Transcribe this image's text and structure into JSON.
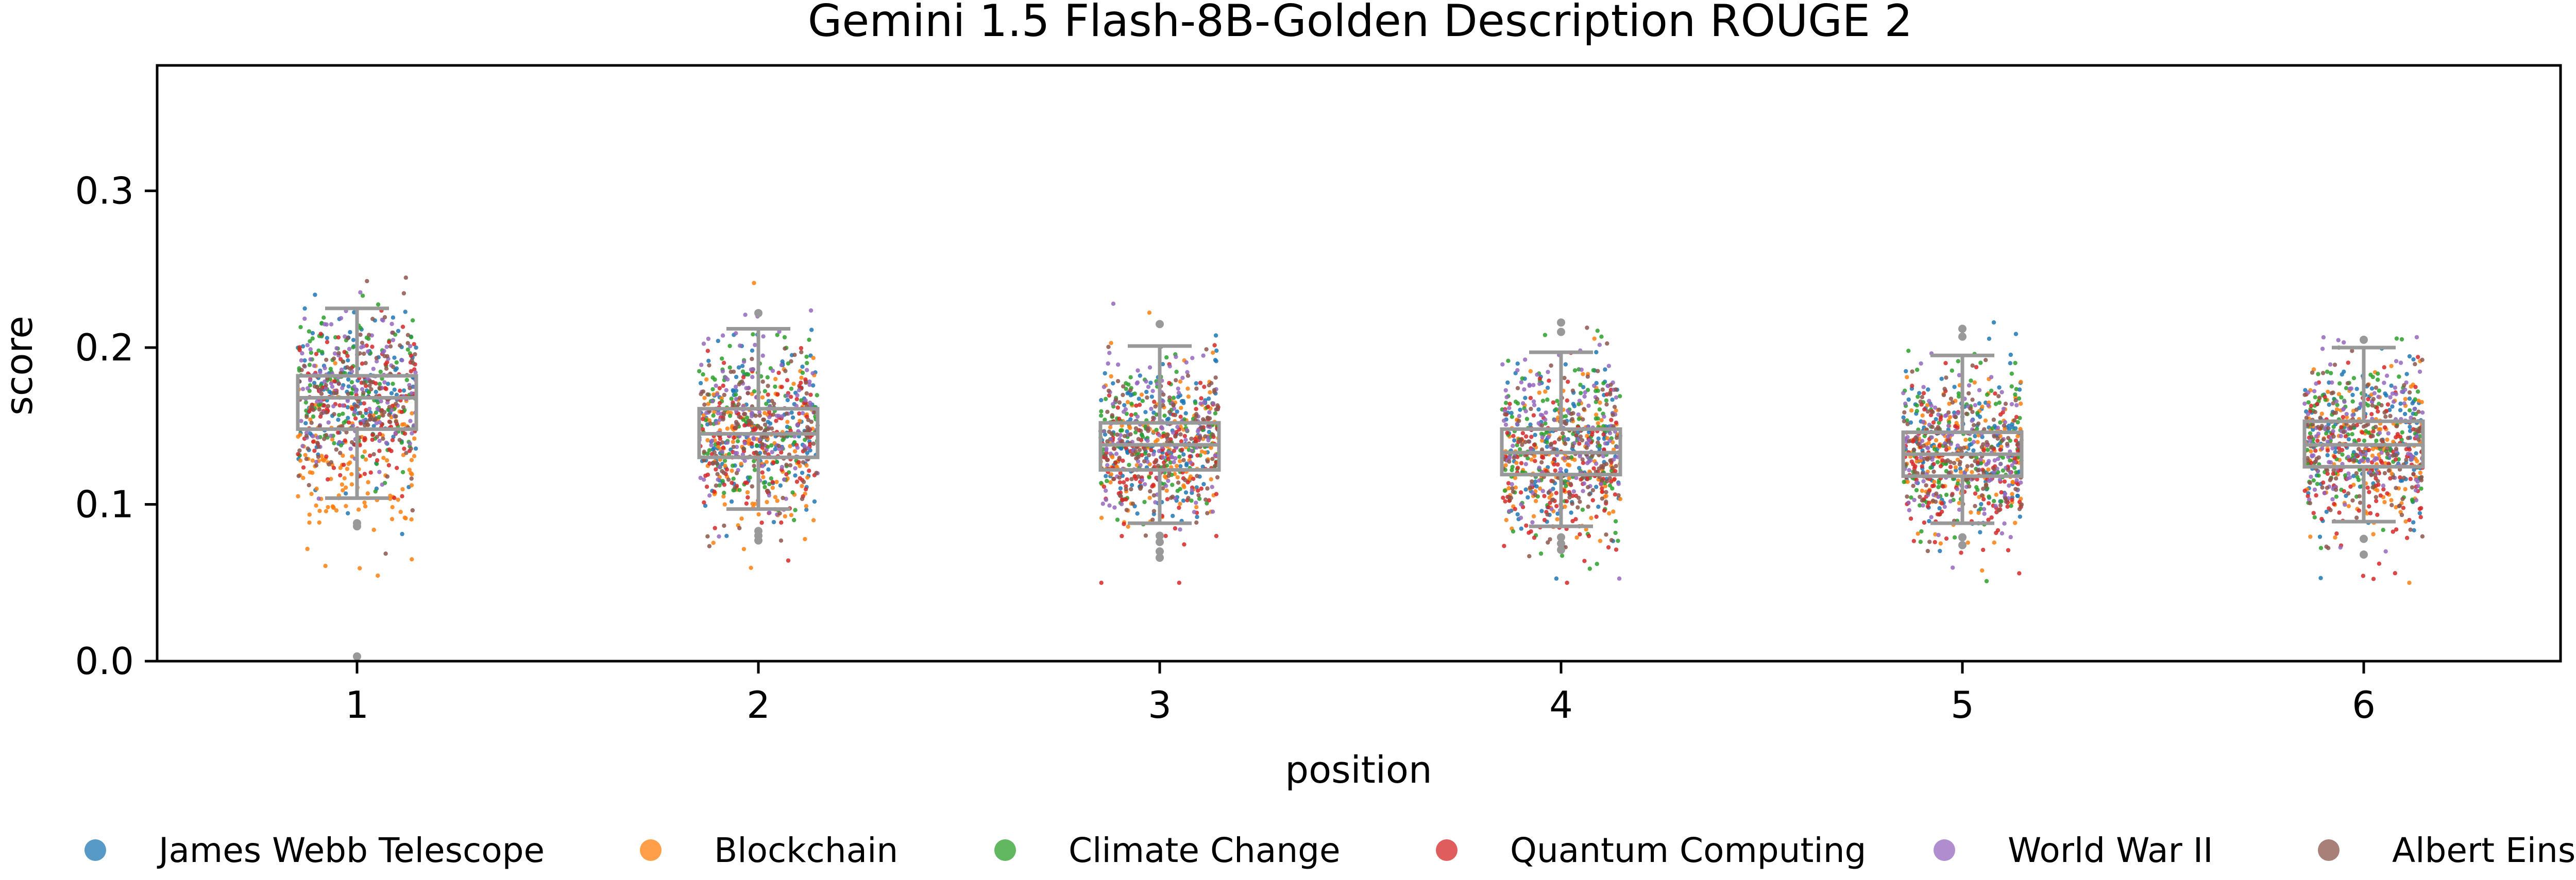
{
  "chart_data": {
    "type": "box-strip",
    "title": "Gemini 1.5 Flash-8B-Golden Description ROUGE 2",
    "xlabel": "position",
    "ylabel": "score",
    "categories": [
      "1",
      "2",
      "3",
      "4",
      "5",
      "6"
    ],
    "y_ticks": [
      "0.0",
      "0.1",
      "0.2",
      "0.3"
    ],
    "ylim": [
      0.0,
      0.38
    ],
    "grid": false,
    "legend_position": "bottom",
    "box_color": "#999999",
    "boxes": [
      {
        "position": "1",
        "whisker_low": 0.104,
        "q1": 0.148,
        "median": 0.168,
        "q3": 0.182,
        "whisker_high": 0.225
      },
      {
        "position": "2",
        "whisker_low": 0.097,
        "q1": 0.13,
        "median": 0.145,
        "q3": 0.161,
        "whisker_high": 0.212
      },
      {
        "position": "3",
        "whisker_low": 0.088,
        "q1": 0.122,
        "median": 0.138,
        "q3": 0.152,
        "whisker_high": 0.201
      },
      {
        "position": "4",
        "whisker_low": 0.086,
        "q1": 0.119,
        "median": 0.133,
        "q3": 0.148,
        "whisker_high": 0.197
      },
      {
        "position": "5",
        "whisker_low": 0.088,
        "q1": 0.118,
        "median": 0.132,
        "q3": 0.146,
        "whisker_high": 0.195
      },
      {
        "position": "6",
        "whisker_low": 0.089,
        "q1": 0.124,
        "median": 0.138,
        "q3": 0.153,
        "whisker_high": 0.2
      }
    ],
    "outliers": [
      {
        "position": "1",
        "values": [
          0.086,
          0.088,
          0.003
        ]
      },
      {
        "position": "2",
        "values": [
          0.083,
          0.08,
          0.077,
          0.222
        ]
      },
      {
        "position": "3",
        "values": [
          0.08,
          0.076,
          0.07,
          0.066,
          0.215
        ]
      },
      {
        "position": "4",
        "values": [
          0.079,
          0.075,
          0.071,
          0.216,
          0.21
        ]
      },
      {
        "position": "5",
        "values": [
          0.079,
          0.074,
          0.212,
          0.207
        ]
      },
      {
        "position": "6",
        "values": [
          0.078,
          0.068,
          0.205
        ]
      }
    ],
    "series": [
      {
        "name": "James Webb Telescope",
        "color": "#1f77b4"
      },
      {
        "name": "Blockchain",
        "color": "#ff7f0e"
      },
      {
        "name": "Climate Change",
        "color": "#2ca02c"
      },
      {
        "name": "Quantum Computing",
        "color": "#d62728"
      },
      {
        "name": "World War II",
        "color": "#9467bd"
      },
      {
        "name": "Albert Einstein",
        "color": "#8c564b"
      }
    ],
    "strip_center_by_series": [
      [
        0.172,
        0.148,
        0.14,
        0.136,
        0.134,
        0.14
      ],
      [
        0.128,
        0.14,
        0.136,
        0.13,
        0.13,
        0.134
      ],
      [
        0.176,
        0.15,
        0.142,
        0.139,
        0.137,
        0.144
      ],
      [
        0.16,
        0.136,
        0.13,
        0.124,
        0.124,
        0.13
      ],
      [
        0.174,
        0.154,
        0.146,
        0.14,
        0.138,
        0.143
      ],
      [
        0.166,
        0.144,
        0.138,
        0.133,
        0.132,
        0.137
      ]
    ],
    "strip_spread": 0.026
  }
}
